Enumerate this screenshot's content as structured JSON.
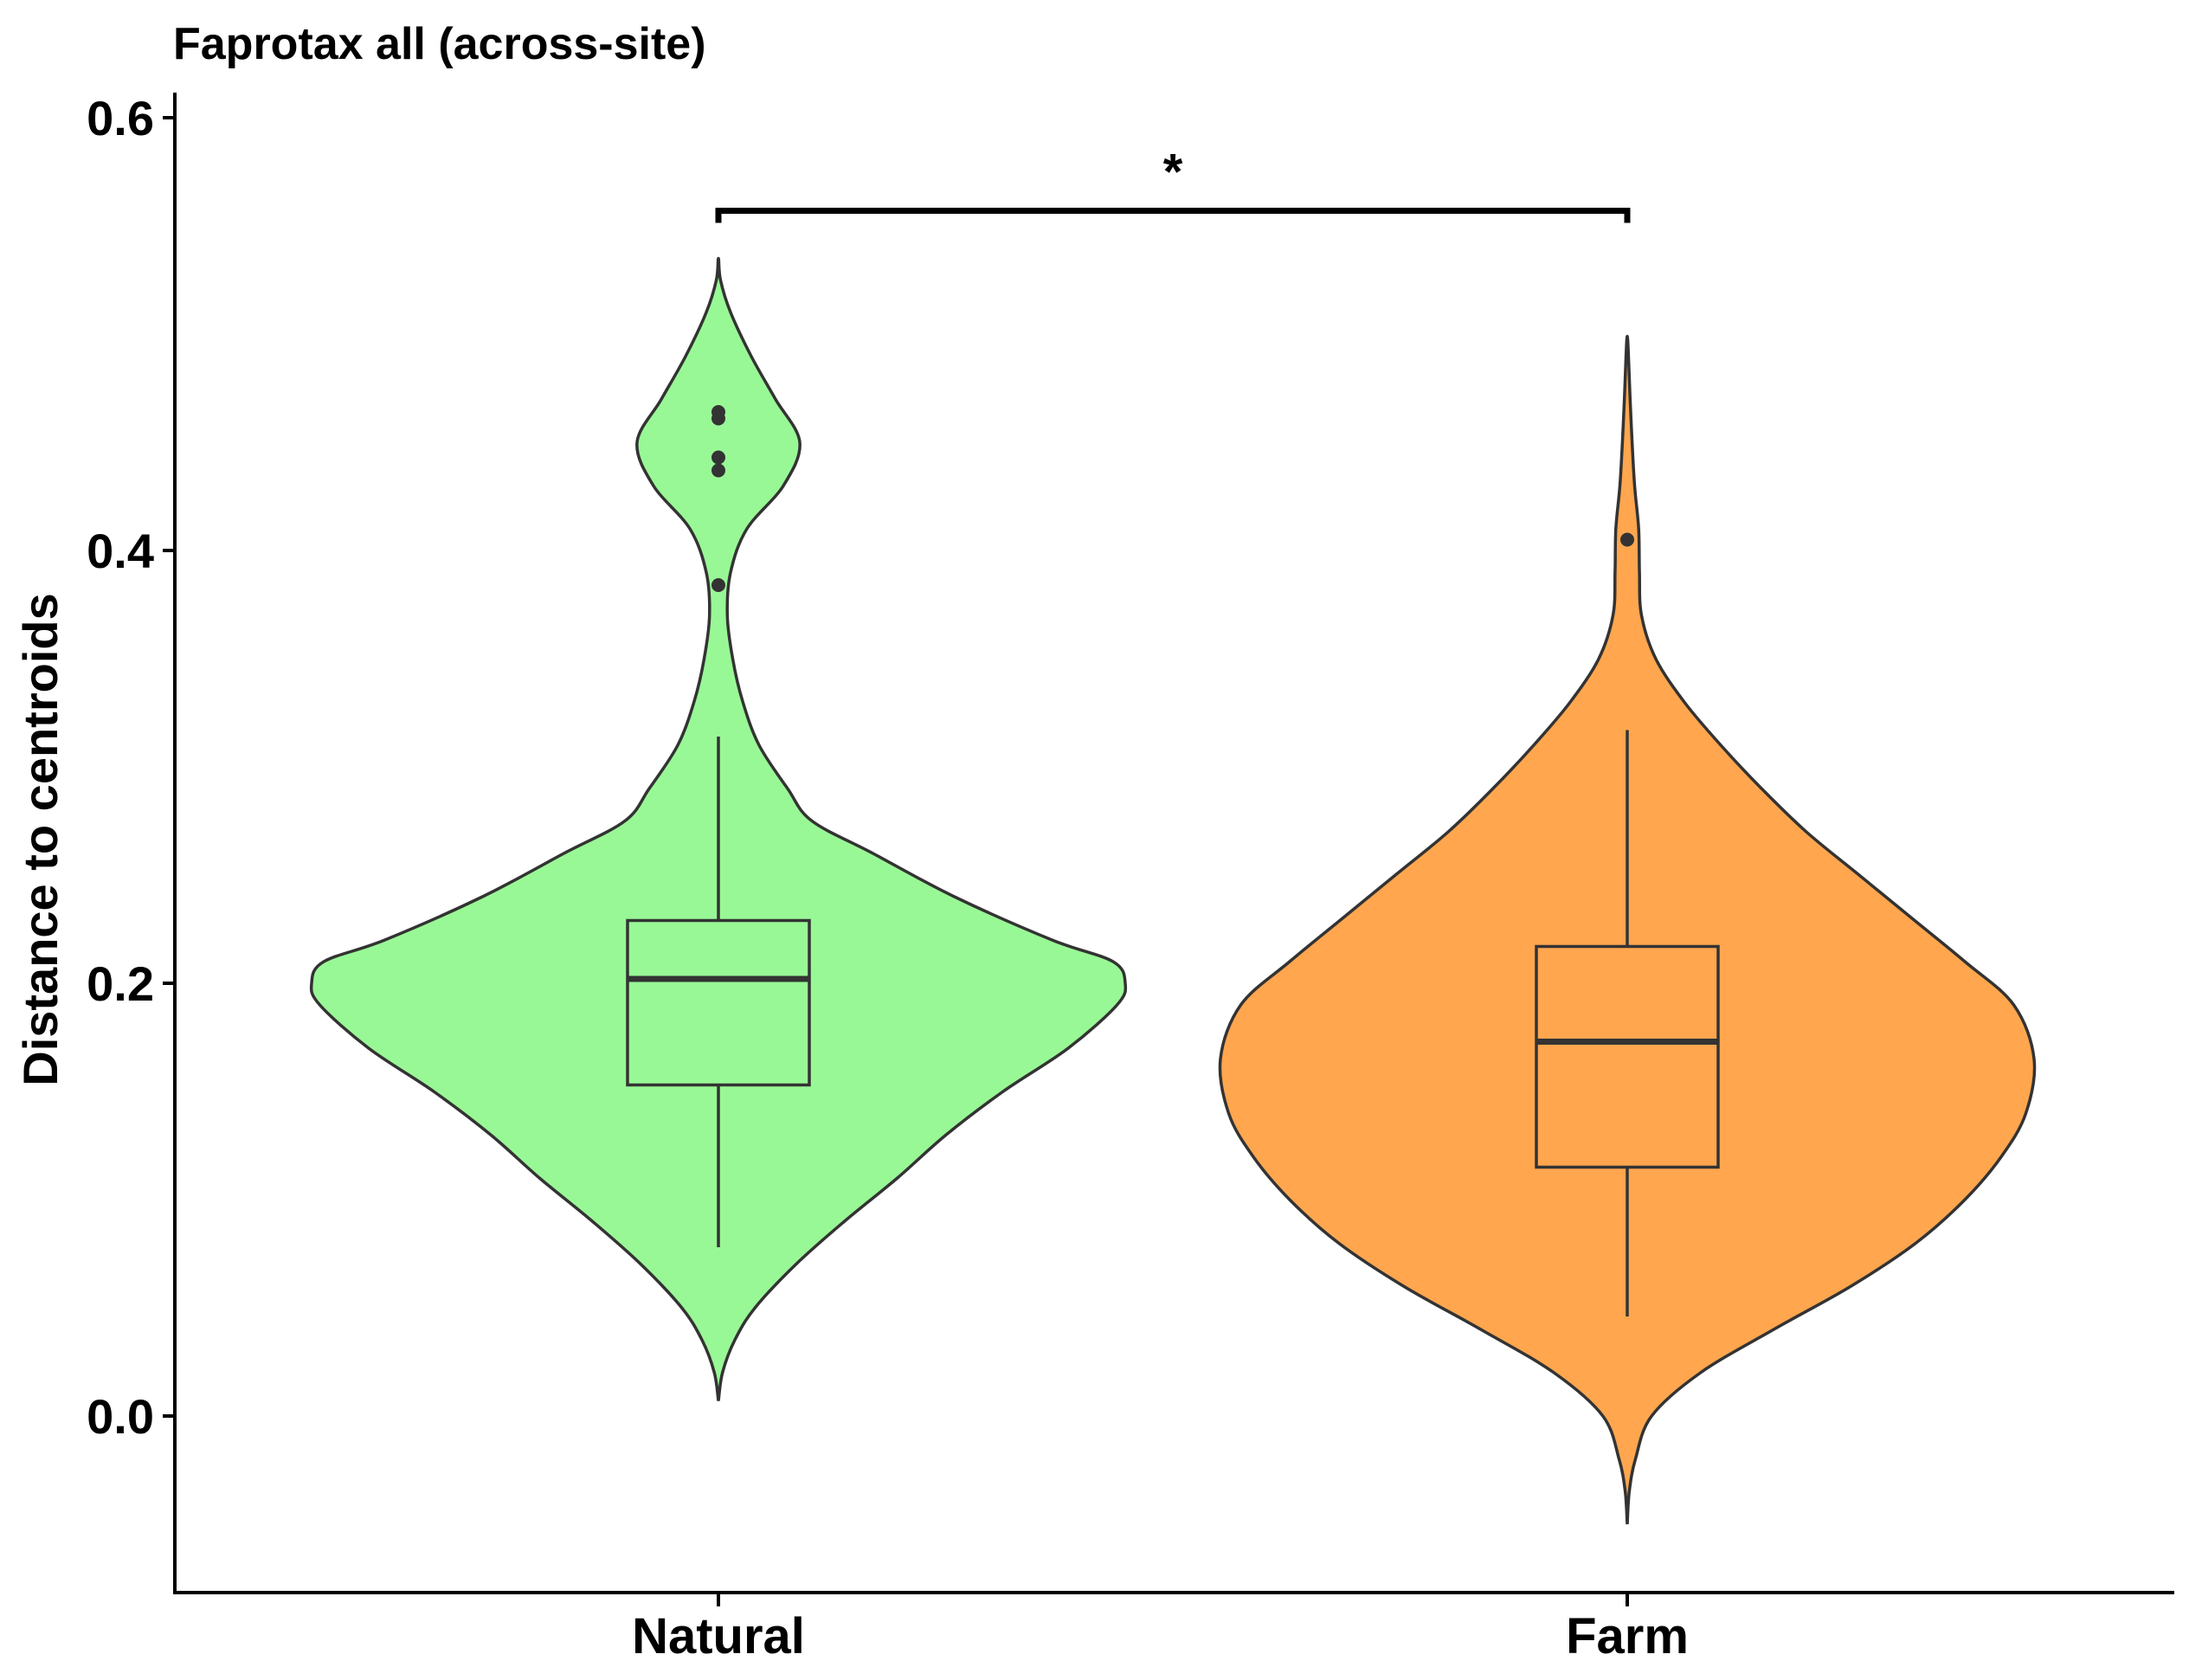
{
  "chart_data": {
    "type": "violin",
    "title": "Faprotax all (across-site)",
    "xlabel": "",
    "ylabel": "Distance to centroids",
    "ylim": [
      -0.08,
      0.61
    ],
    "yticks": [
      0.0,
      0.2,
      0.4,
      0.6
    ],
    "ytick_labels": [
      "0.0",
      "0.2",
      "0.4",
      "0.6"
    ],
    "grid": false,
    "legend": "none",
    "categories": [
      "Natural",
      "Farm"
    ],
    "series": [
      {
        "category": "Natural",
        "color": "#99F896",
        "box": {
          "min": 0.078,
          "q1": 0.153,
          "median": 0.202,
          "q3": 0.229,
          "max": 0.314
        },
        "outliers": [
          0.384,
          0.437,
          0.443,
          0.461,
          0.464
        ],
        "violin_extent": [
          0.007,
          0.535
        ],
        "violin_profile": [
          [
            0.007,
            0.0
          ],
          [
            0.02,
            0.01
          ],
          [
            0.035,
            0.04
          ],
          [
            0.05,
            0.09
          ],
          [
            0.07,
            0.19
          ],
          [
            0.09,
            0.31
          ],
          [
            0.11,
            0.44
          ],
          [
            0.13,
            0.56
          ],
          [
            0.15,
            0.7
          ],
          [
            0.17,
            0.86
          ],
          [
            0.19,
            0.98
          ],
          [
            0.2,
            1.0
          ],
          [
            0.21,
            0.97
          ],
          [
            0.22,
            0.82
          ],
          [
            0.24,
            0.58
          ],
          [
            0.26,
            0.38
          ],
          [
            0.275,
            0.23
          ],
          [
            0.29,
            0.17
          ],
          [
            0.31,
            0.1
          ],
          [
            0.33,
            0.06
          ],
          [
            0.35,
            0.035
          ],
          [
            0.37,
            0.022
          ],
          [
            0.39,
            0.03
          ],
          [
            0.41,
            0.07
          ],
          [
            0.43,
            0.16
          ],
          [
            0.45,
            0.2
          ],
          [
            0.47,
            0.14
          ],
          [
            0.49,
            0.08
          ],
          [
            0.51,
            0.03
          ],
          [
            0.525,
            0.005
          ],
          [
            0.535,
            0.0
          ]
        ]
      },
      {
        "category": "Farm",
        "color": "#FFA64F",
        "box": {
          "min": 0.046,
          "q1": 0.115,
          "median": 0.173,
          "q3": 0.217,
          "max": 0.317
        },
        "outliers": [
          0.405
        ],
        "violin_extent": [
          -0.05,
          0.499
        ],
        "violin_profile": [
          [
            -0.05,
            0.0
          ],
          [
            -0.035,
            0.005
          ],
          [
            -0.02,
            0.02
          ],
          [
            0.0,
            0.06
          ],
          [
            0.02,
            0.18
          ],
          [
            0.04,
            0.36
          ],
          [
            0.06,
            0.55
          ],
          [
            0.08,
            0.71
          ],
          [
            0.1,
            0.83
          ],
          [
            0.12,
            0.92
          ],
          [
            0.14,
            0.98
          ],
          [
            0.165,
            1.0
          ],
          [
            0.19,
            0.95
          ],
          [
            0.21,
            0.83
          ],
          [
            0.23,
            0.7
          ],
          [
            0.25,
            0.57
          ],
          [
            0.27,
            0.44
          ],
          [
            0.29,
            0.33
          ],
          [
            0.31,
            0.23
          ],
          [
            0.33,
            0.14
          ],
          [
            0.35,
            0.07
          ],
          [
            0.37,
            0.035
          ],
          [
            0.39,
            0.03
          ],
          [
            0.41,
            0.028
          ],
          [
            0.43,
            0.018
          ],
          [
            0.45,
            0.012
          ],
          [
            0.47,
            0.007
          ],
          [
            0.49,
            0.003
          ],
          [
            0.499,
            0.0
          ]
        ]
      }
    ],
    "annotations": [
      {
        "type": "significance",
        "from": "Natural",
        "to": "Farm",
        "y": 0.557,
        "label": "*"
      }
    ]
  }
}
